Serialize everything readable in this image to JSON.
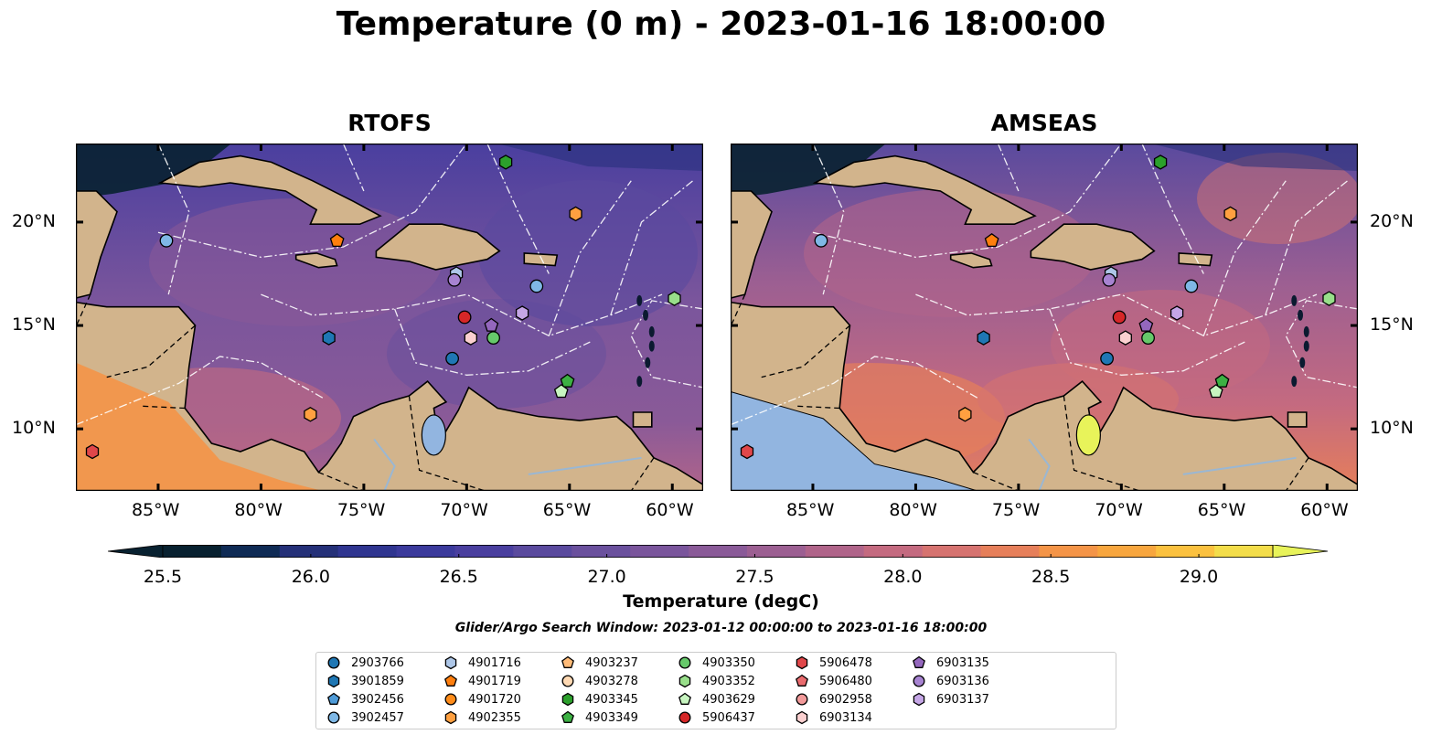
{
  "title": "Temperature (0 m) - 2023-01-16 18:00:00",
  "panels": [
    {
      "title": "RTOFS",
      "palette": "rtofs"
    },
    {
      "title": "AMSEAS",
      "palette": "amseas"
    }
  ],
  "lon_ticks": [
    "85°W",
    "80°W",
    "75°W",
    "70°W",
    "65°W",
    "60°W"
  ],
  "lon_values": [
    -85,
    -80,
    -75,
    -70,
    -65,
    -60
  ],
  "lat_ticks": [
    "20°N",
    "15°N",
    "10°N"
  ],
  "lat_values": [
    20,
    15,
    10
  ],
  "extent": {
    "lon_min": -89,
    "lon_max": -58.5,
    "lat_min": 7,
    "lat_max": 23.8
  },
  "colorbar": {
    "label": "Temperature (degC)",
    "ticks": [
      "25.5",
      "26.0",
      "26.5",
      "27.0",
      "27.5",
      "28.0",
      "28.5",
      "29.0"
    ],
    "tick_values": [
      25.5,
      26.0,
      26.5,
      27.0,
      27.5,
      28.0,
      28.5,
      29.0
    ],
    "vmin": 25.5,
    "vmax": 29.25,
    "step": 0.25,
    "colors": [
      "#082130",
      "#0f2b55",
      "#243078",
      "#2f3590",
      "#3b3a9c",
      "#4a3f9f",
      "#5a4a9e",
      "#6a509d",
      "#7a559c",
      "#8a5a98",
      "#9c5f92",
      "#b0648a",
      "#c46a80",
      "#d67370",
      "#e67f5a",
      "#f49447",
      "#f8a63e",
      "#fbc13f",
      "#f3dd4a",
      "#e8f35a"
    ]
  },
  "search_window": "Glider/Argo Search Window: 2023-01-12 00:00:00 to 2023-01-16 18:00:00",
  "land_color": "#d2b48c",
  "legend": [
    {
      "id": "2903766",
      "marker": "circle",
      "color": "#1f77b4"
    },
    {
      "id": "3901859",
      "marker": "hexagon",
      "color": "#1f77b4"
    },
    {
      "id": "3902456",
      "marker": "pentagon",
      "color": "#4e9bd8"
    },
    {
      "id": "3902457",
      "marker": "circle",
      "color": "#7fb8e6"
    },
    {
      "id": "4901716",
      "marker": "hexagon",
      "color": "#aec7e8"
    },
    {
      "id": "4901719",
      "marker": "pentagon",
      "color": "#ff7f0e"
    },
    {
      "id": "4901720",
      "marker": "circle",
      "color": "#ff8c1a"
    },
    {
      "id": "4902355",
      "marker": "hexagon",
      "color": "#ffa040"
    },
    {
      "id": "4903237",
      "marker": "pentagon",
      "color": "#ffbb78"
    },
    {
      "id": "4903278",
      "marker": "circle",
      "color": "#ffd9b3"
    },
    {
      "id": "4903345",
      "marker": "hexagon",
      "color": "#2ca02c"
    },
    {
      "id": "4903349",
      "marker": "pentagon",
      "color": "#3cb043"
    },
    {
      "id": "4903350",
      "marker": "circle",
      "color": "#66c96a"
    },
    {
      "id": "4903352",
      "marker": "hexagon",
      "color": "#98df8a"
    },
    {
      "id": "4903629",
      "marker": "pentagon",
      "color": "#c7f5c0"
    },
    {
      "id": "5906437",
      "marker": "circle",
      "color": "#d62728"
    },
    {
      "id": "5906478",
      "marker": "hexagon",
      "color": "#e0474a"
    },
    {
      "id": "5906480",
      "marker": "pentagon",
      "color": "#ea6b6e"
    },
    {
      "id": "6902958",
      "marker": "circle",
      "color": "#f29a9a"
    },
    {
      "id": "6903134",
      "marker": "hexagon",
      "color": "#fbd0d0"
    },
    {
      "id": "6903135",
      "marker": "pentagon",
      "color": "#9467bd"
    },
    {
      "id": "6903136",
      "marker": "circle",
      "color": "#a783d1"
    },
    {
      "id": "6903137",
      "marker": "hexagon",
      "color": "#c5a6e6"
    }
  ],
  "floats": [
    {
      "id": "3902457",
      "lon": -84.6,
      "lat": 19.1
    },
    {
      "id": "4901719",
      "lon": -76.3,
      "lat": 19.1
    },
    {
      "id": "4902355",
      "lon": -64.7,
      "lat": 20.4
    },
    {
      "id": "4903345",
      "lon": -68.1,
      "lat": 22.9
    },
    {
      "id": "4901716",
      "lon": -70.5,
      "lat": 17.5
    },
    {
      "id": "6903136",
      "lon": -70.6,
      "lat": 17.2
    },
    {
      "id": "3902457",
      "lon": -66.6,
      "lat": 16.9
    },
    {
      "id": "6903137",
      "lon": -67.3,
      "lat": 15.6
    },
    {
      "id": "4903352",
      "lon": -59.9,
      "lat": 16.3
    },
    {
      "id": "5906437",
      "lon": -70.1,
      "lat": 15.4
    },
    {
      "id": "6903135",
      "lon": -68.8,
      "lat": 15.0
    },
    {
      "id": "6903134",
      "lon": -69.8,
      "lat": 14.4
    },
    {
      "id": "4903350",
      "lon": -68.7,
      "lat": 14.4
    },
    {
      "id": "3901859",
      "lon": -76.7,
      "lat": 14.4
    },
    {
      "id": "2903766",
      "lon": -70.7,
      "lat": 13.4
    },
    {
      "id": "4903349",
      "lon": -65.1,
      "lat": 12.3
    },
    {
      "id": "4903629",
      "lon": -65.4,
      "lat": 11.8
    },
    {
      "id": "4902355",
      "lon": -77.6,
      "lat": 10.7
    },
    {
      "id": "5906478",
      "lon": -88.2,
      "lat": 8.9
    }
  ]
}
